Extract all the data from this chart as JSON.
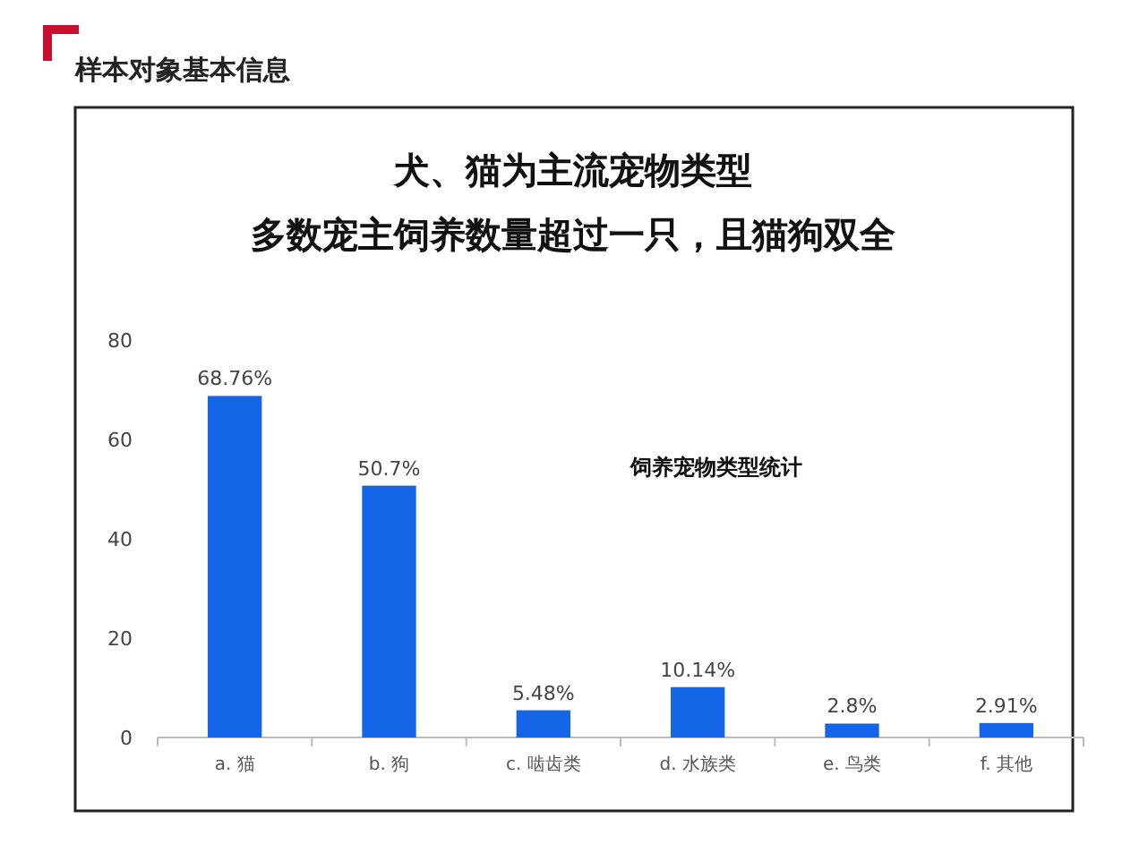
{
  "chart_data": {
    "type": "bar",
    "title": "犬、猫为主流宠物类型",
    "subtitle": "多数宠主饲养数量超过一只，且猫狗双全",
    "annotations": [
      "样本对象基本信息",
      "饲养宠物类型统计"
    ],
    "categories": [
      "a. 猫",
      "b. 狗",
      "c. 啮齿类",
      "d. 水族类",
      "e. 鸟类",
      "f. 其他"
    ],
    "values": [
      68.76,
      50.7,
      5.48,
      10.14,
      2.8,
      2.91
    ],
    "value_labels": [
      "68.76%",
      "50.7%",
      "5.48%",
      "10.14%",
      "2.8%",
      "2.91%"
    ],
    "color": "#1565e8",
    "ylim": [
      0,
      80
    ],
    "yticks": [
      0,
      20,
      40,
      60,
      80
    ],
    "grid": false
  }
}
